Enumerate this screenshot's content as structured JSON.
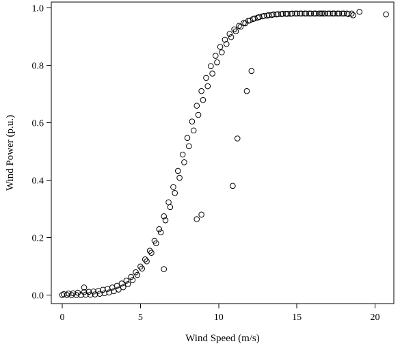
{
  "chart_data": {
    "type": "scatter",
    "title": "",
    "xlabel": "Wind Speed (m/s)",
    "ylabel": "Wind Power (p.u.)",
    "xlim": [
      -0.7,
      21.2
    ],
    "ylim": [
      -0.03,
      1.02
    ],
    "x_ticks": [
      0,
      5,
      10,
      15,
      20
    ],
    "y_ticks": [
      0.0,
      0.2,
      0.4,
      0.6,
      0.8,
      1.0
    ],
    "x_tick_labels": [
      "0",
      "5",
      "10",
      "15",
      "20"
    ],
    "y_tick_labels": [
      "0.0",
      "0.2",
      "0.4",
      "0.6",
      "0.8",
      "1.0"
    ],
    "grid": false,
    "legend": "none",
    "marker": "open-circle",
    "marker_color": "#000000",
    "series": [
      {
        "x": [
          0.0,
          0.3,
          0.6,
          0.9,
          1.2,
          1.5,
          1.8,
          2.1,
          2.4,
          2.7,
          3.0,
          3.3,
          3.6,
          3.9,
          4.2,
          4.5,
          4.8,
          5.1,
          5.4,
          5.7,
          6.0,
          6.3,
          6.6,
          6.9,
          7.2,
          7.5,
          7.8,
          8.1,
          8.4,
          8.7,
          9.0,
          9.3,
          9.6,
          9.9,
          10.2,
          10.5,
          10.8,
          11.1,
          11.4,
          11.7,
          12.0,
          12.3,
          12.6,
          12.9,
          13.2,
          13.5,
          13.8,
          14.1,
          14.4,
          14.7,
          15.0,
          15.3,
          15.6,
          15.9,
          16.2,
          16.5,
          16.8,
          17.1,
          17.4,
          17.7,
          18.0,
          18.3,
          18.6,
          19.0,
          20.7,
          0.1,
          0.4,
          0.7,
          1.0,
          1.4,
          1.7,
          2.0,
          2.3,
          2.6,
          2.9,
          3.2,
          3.5,
          3.8,
          4.1,
          4.4,
          4.7,
          5.0,
          5.3,
          5.6,
          5.9,
          6.2,
          6.5,
          6.8,
          7.1,
          7.4,
          7.7,
          8.0,
          8.3,
          8.6,
          8.9,
          9.2,
          9.5,
          9.8,
          10.1,
          10.4,
          10.7,
          11.0,
          11.3,
          11.6,
          11.9,
          12.2,
          12.5,
          12.8,
          13.1,
          13.4,
          13.7,
          14.0,
          14.3,
          14.6,
          14.9,
          15.2,
          15.5,
          15.8,
          16.1,
          16.4,
          16.7,
          17.0,
          17.3,
          17.6,
          17.9,
          18.2,
          18.5,
          1.4,
          6.5,
          8.6,
          8.9,
          10.9,
          11.2,
          11.8,
          12.1,
          16.6,
          17.3
        ],
        "y": [
          0.0,
          0.0,
          0.0,
          0.0,
          0.0,
          0.001,
          0.001,
          0.002,
          0.004,
          0.006,
          0.009,
          0.013,
          0.019,
          0.027,
          0.038,
          0.052,
          0.07,
          0.092,
          0.117,
          0.147,
          0.18,
          0.218,
          0.26,
          0.306,
          0.355,
          0.408,
          0.462,
          0.518,
          0.573,
          0.627,
          0.679,
          0.727,
          0.771,
          0.81,
          0.845,
          0.874,
          0.898,
          0.918,
          0.934,
          0.946,
          0.956,
          0.963,
          0.968,
          0.972,
          0.975,
          0.977,
          0.978,
          0.979,
          0.979,
          0.98,
          0.98,
          0.98,
          0.98,
          0.98,
          0.98,
          0.98,
          0.98,
          0.98,
          0.98,
          0.98,
          0.98,
          0.978,
          0.974,
          0.986,
          0.977,
          0.003,
          0.005,
          0.006,
          0.008,
          0.01,
          0.011,
          0.012,
          0.014,
          0.018,
          0.021,
          0.026,
          0.032,
          0.04,
          0.05,
          0.063,
          0.079,
          0.099,
          0.124,
          0.154,
          0.189,
          0.229,
          0.274,
          0.323,
          0.376,
          0.432,
          0.489,
          0.547,
          0.604,
          0.659,
          0.71,
          0.756,
          0.797,
          0.833,
          0.864,
          0.889,
          0.909,
          0.925,
          0.937,
          0.947,
          0.955,
          0.961,
          0.966,
          0.97,
          0.973,
          0.975,
          0.977,
          0.978,
          0.979,
          0.979,
          0.98,
          0.98,
          0.98,
          0.98,
          0.98,
          0.98,
          0.98,
          0.98,
          0.98,
          0.98,
          0.98,
          0.98,
          0.98,
          0.026,
          0.09,
          0.264,
          0.28,
          0.38,
          0.545,
          0.71,
          0.78,
          0.98,
          0.98
        ]
      }
    ]
  }
}
